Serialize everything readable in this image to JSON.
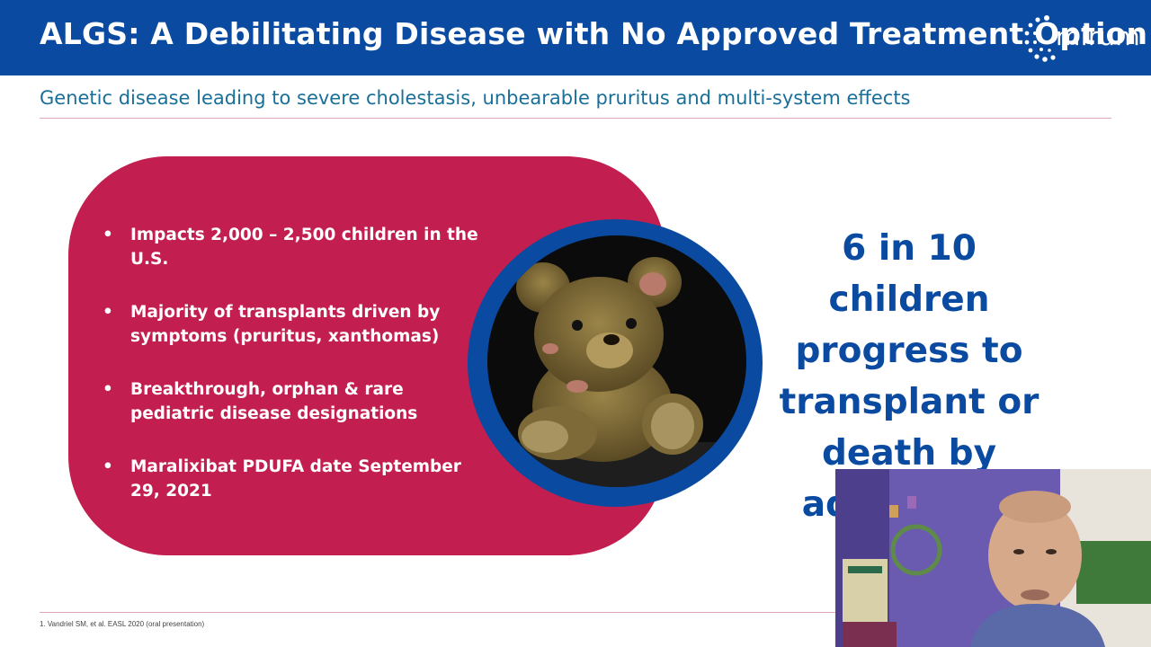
{
  "slide": {
    "title": "ALGS: A Debilitating Disease with No Approved Treatment Option",
    "subtitle": "Genetic disease leading to severe cholestasis, unbearable pruritus and multi-system effects",
    "logo_text": "mirum",
    "bullets": [
      "Impacts 2,000 – 2,500 children in the U.S.",
      "Majority of transplants driven by symptoms (pruritus, xanthomas)",
      "Breakthrough, orphan & rare pediatric disease designations",
      "Maralixibat PDUFA date September 29, 2021"
    ],
    "stat_lines": [
      "6 in 10 children",
      "progress to",
      "transplant or",
      "death by",
      "adulthood"
    ],
    "stat_footnote_marker": "1",
    "footnote": "1. Vandriel SM, et al. EASL 2020 (oral presentation)"
  },
  "images": {
    "center": "teddy-bear-photo",
    "overlay": "presenter-webcam"
  },
  "colors": {
    "header_blue": "#0a4aa0",
    "pill_red": "#c21f50",
    "subtitle_teal": "#1a6f99",
    "stat_blue": "#0a4aa0"
  }
}
